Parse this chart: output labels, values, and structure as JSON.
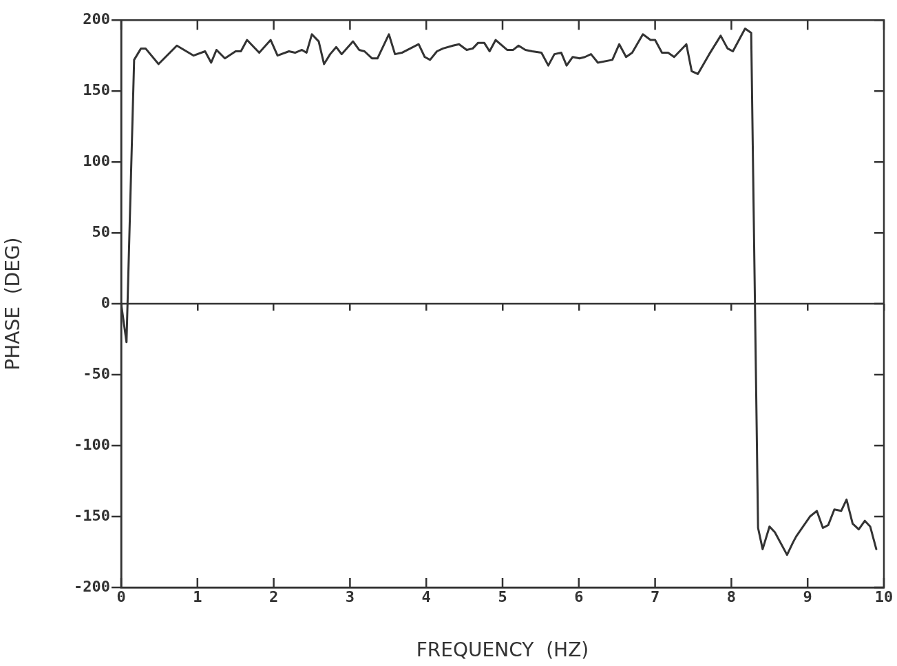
{
  "chart_data": {
    "type": "line",
    "xlabel": "FREQUENCY  (HZ)",
    "ylabel": "PHASE  (DEG)",
    "x": [
      0,
      0.07,
      0.17,
      0.26,
      0.32,
      0.49,
      0.73,
      0.95,
      1.1,
      1.18,
      1.25,
      1.36,
      1.5,
      1.57,
      1.65,
      1.81,
      1.96,
      2.05,
      2.2,
      2.28,
      2.37,
      2.43,
      2.5,
      2.59,
      2.66,
      2.74,
      2.82,
      2.89,
      3.04,
      3.12,
      3.19,
      3.29,
      3.36,
      3.51,
      3.59,
      3.68,
      3.9,
      3.98,
      4.05,
      4.14,
      4.22,
      4.35,
      4.43,
      4.53,
      4.61,
      4.68,
      4.76,
      4.83,
      4.91,
      5.06,
      5.14,
      5.21,
      5.3,
      5.39,
      5.51,
      5.6,
      5.68,
      5.77,
      5.84,
      5.92,
      6.01,
      6.08,
      6.16,
      6.25,
      6.44,
      6.53,
      6.62,
      6.7,
      6.84,
      6.94,
      7.0,
      7.09,
      7.17,
      7.25,
      7.41,
      7.48,
      7.56,
      7.71,
      7.86,
      7.95,
      8.02,
      8.18,
      8.26,
      8.35,
      8.41,
      8.5,
      8.57,
      8.73,
      8.81,
      8.85,
      9.03,
      9.12,
      9.2,
      9.27,
      9.35,
      9.44,
      9.51,
      9.59,
      9.67,
      9.75,
      9.82,
      9.9
    ],
    "series": [
      {
        "color": "#333333",
        "values": [
          0,
          -27,
          172,
          180,
          180,
          169,
          182,
          175,
          178,
          170,
          179,
          173,
          178,
          178,
          186,
          177,
          186,
          175,
          178,
          177,
          179,
          177,
          190,
          185,
          169,
          176,
          181,
          176,
          185,
          179,
          178,
          173,
          173,
          190,
          176,
          177,
          183,
          174,
          172,
          178,
          180,
          182,
          183,
          179,
          180,
          184,
          184,
          178,
          186,
          179,
          179,
          182,
          179,
          178,
          177,
          168,
          176,
          177,
          168,
          174,
          173,
          174,
          176,
          170,
          172,
          183,
          174,
          177,
          190,
          186,
          186,
          177,
          177,
          174,
          183,
          164,
          162,
          176,
          189,
          180,
          178,
          194,
          191,
          -158,
          -173,
          -157,
          -161,
          -177,
          -168,
          -164,
          -150,
          -146,
          -158,
          -156,
          -145,
          -146,
          -138,
          -155,
          -159,
          -153,
          -157,
          -173
        ]
      }
    ],
    "xlim": [
      0,
      10
    ],
    "xticks": [
      0,
      1,
      2,
      3,
      4,
      5,
      6,
      7,
      8,
      9,
      10
    ],
    "ylim": [
      -200,
      200
    ],
    "yticks": [
      -200,
      -150,
      -100,
      -50,
      0,
      50,
      100,
      150,
      200
    ],
    "ref_lines": [
      {
        "axis": "y",
        "value": 0,
        "color": "#333333"
      }
    ],
    "grid": false,
    "legend": false,
    "marker": "none",
    "line_style": "solid"
  }
}
